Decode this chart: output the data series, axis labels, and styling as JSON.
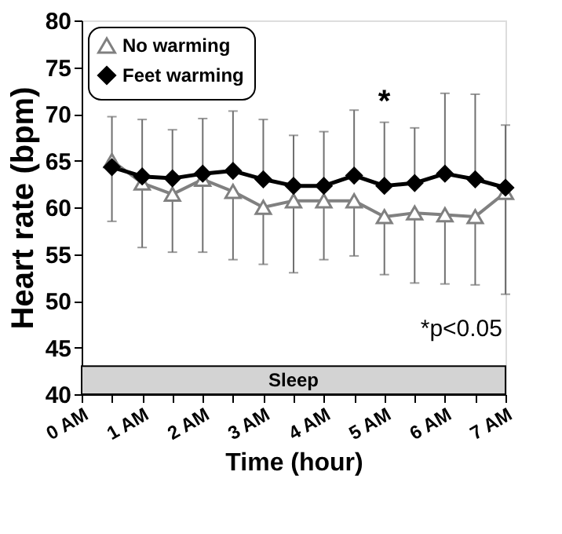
{
  "chart_data": {
    "type": "line",
    "xlabel": "Time (hour)",
    "ylabel": "Heart rate (bpm)",
    "x": [
      0.5,
      1,
      1.5,
      2,
      2.5,
      3,
      3.5,
      4,
      4.5,
      5,
      5.5,
      6,
      6.5,
      7
    ],
    "series": [
      {
        "name": "No warming",
        "color": "#808080",
        "marker": "triangle",
        "values": [
          65.0,
          62.6,
          61.4,
          63.0,
          61.7,
          60.0,
          60.7,
          60.7,
          60.7,
          59.0,
          59.4,
          59.2,
          59.0,
          61.6
        ],
        "errors": [
          [
            58.5,
            65.0
          ],
          [
            55.7,
            62.6
          ],
          [
            55.2,
            61.4
          ],
          [
            55.2,
            63.0
          ],
          [
            54.4,
            61.7
          ],
          [
            53.9,
            60.0
          ],
          [
            53.0,
            60.7
          ],
          [
            54.4,
            60.7
          ],
          [
            54.8,
            60.7
          ],
          [
            52.8,
            59.0
          ],
          [
            51.9,
            59.4
          ],
          [
            51.8,
            59.2
          ],
          [
            51.7,
            59.0
          ],
          [
            50.7,
            61.6
          ]
        ]
      },
      {
        "name": "Feet warming",
        "color": "#000000",
        "marker": "diamond",
        "values": [
          64.3,
          63.3,
          63.1,
          63.6,
          63.9,
          63.0,
          62.3,
          62.3,
          63.4,
          62.3,
          62.6,
          63.6,
          63.0,
          62.1
        ],
        "errors": [
          [
            64.3,
            69.7
          ],
          [
            63.3,
            69.4
          ],
          [
            63.1,
            68.3
          ],
          [
            63.6,
            69.5
          ],
          [
            63.9,
            70.3
          ],
          [
            63.0,
            69.4
          ],
          [
            62.3,
            67.7
          ],
          [
            62.3,
            68.1
          ],
          [
            63.4,
            70.4
          ],
          [
            62.3,
            69.1
          ],
          [
            62.6,
            68.5
          ],
          [
            63.6,
            72.2
          ],
          [
            63.0,
            72.1
          ],
          [
            62.1,
            68.8
          ]
        ]
      }
    ],
    "xlim": [
      0,
      7
    ],
    "xticks": [
      {
        "value": 0,
        "label": "0 AM"
      },
      {
        "value": 0.5,
        "label": null
      },
      {
        "value": 1,
        "label": "1 AM"
      },
      {
        "value": 1.5,
        "label": null
      },
      {
        "value": 2,
        "label": "2 AM"
      },
      {
        "value": 2.5,
        "label": null
      },
      {
        "value": 3,
        "label": "3 AM"
      },
      {
        "value": 3.5,
        "label": null
      },
      {
        "value": 4,
        "label": "4 AM"
      },
      {
        "value": 4.5,
        "label": null
      },
      {
        "value": 5,
        "label": "5 AM"
      },
      {
        "value": 5.5,
        "label": null
      },
      {
        "value": 6,
        "label": "6 AM"
      },
      {
        "value": 6.5,
        "label": null
      },
      {
        "value": 7,
        "label": "7 AM"
      }
    ],
    "ylim": [
      40,
      80
    ],
    "yticks": [
      40,
      45,
      50,
      55,
      60,
      65,
      70,
      75,
      80
    ],
    "bands": [
      {
        "axis": "y",
        "from": 40,
        "to": 43,
        "label": "Sleep",
        "color": "#d3d3d3"
      }
    ],
    "annotations": [
      "*",
      "*p<0.05"
    ],
    "grid": false,
    "legend": "top left",
    "line_style": "solid"
  }
}
